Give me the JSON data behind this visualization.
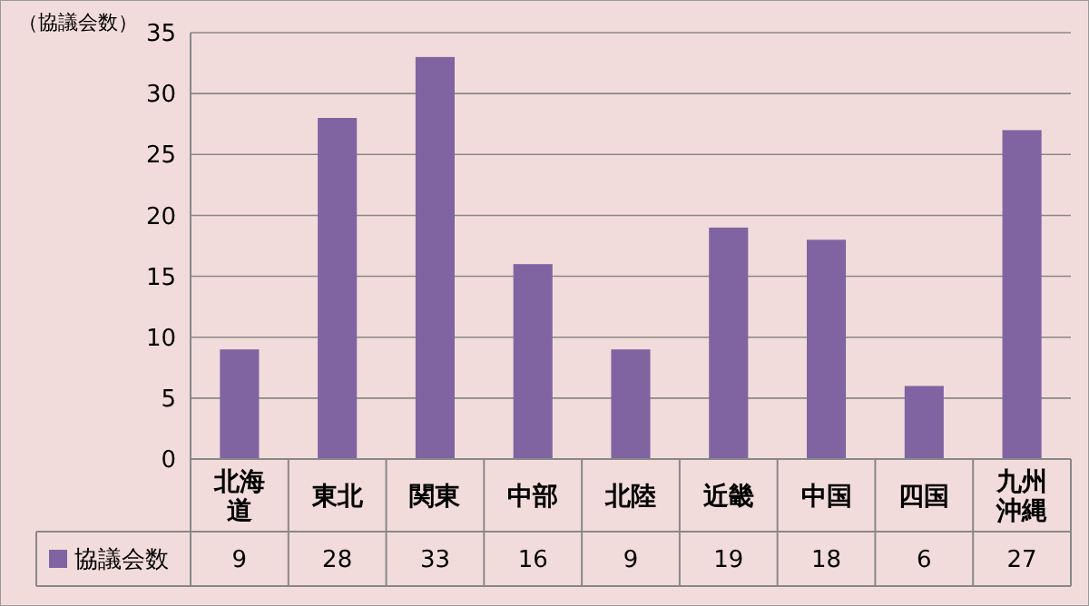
{
  "chart_data": {
    "type": "bar",
    "ylabel": "（協議会数）",
    "categories": [
      "北海道",
      "東北",
      "関東",
      "中部",
      "北陸",
      "近畿",
      "中国",
      "四国",
      "九州沖縄"
    ],
    "series": [
      {
        "name": "協議会数",
        "color": "#8064a2",
        "values": [
          9,
          28,
          33,
          16,
          9,
          19,
          18,
          6,
          27
        ]
      }
    ],
    "ylim": [
      0,
      35
    ],
    "yticks": [
      0,
      5,
      10,
      15,
      20,
      25,
      30,
      35
    ],
    "grid": "y",
    "legend": "bottom",
    "data_labels": true
  }
}
